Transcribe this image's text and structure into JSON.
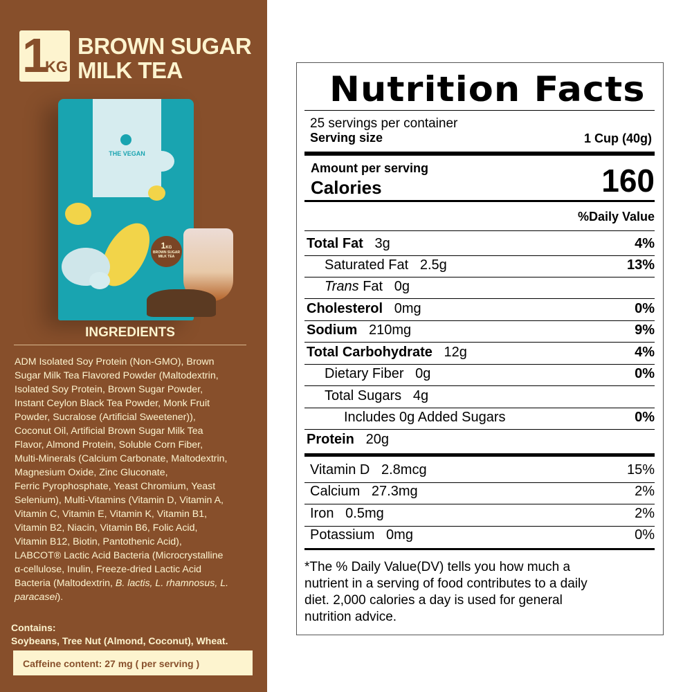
{
  "left": {
    "badge": {
      "number": "1",
      "unit": "KG"
    },
    "title_lines": [
      "BROWN SUGAR",
      "MILK TEA"
    ],
    "pouch": {
      "brand": "THE VEGAN",
      "sticker_number": "1",
      "sticker_unit": "KG",
      "sticker_text": "BROWN SUGAR MILK TEA"
    },
    "ingredients_heading": "INGREDIENTS",
    "ingredients_lines": [
      "ADM Isolated Soy Protein (Non-GMO), Brown",
      "Sugar Milk Tea Flavored Powder (Maltodextrin,",
      "Isolated Soy Protein, Brown Sugar Powder,",
      "Instant Ceylon Black Tea Powder, Monk Fruit",
      "Powder, Sucralose (Artificial Sweetener)),",
      "Coconut Oil, Artificial Brown Sugar Milk Tea",
      "Flavor, Almond Protein, Soluble Corn Fiber,",
      "Multi-Minerals (Calcium Carbonate, Maltodextrin,",
      "Magnesium Oxide, Zinc Gluconate,",
      "Ferric Pyrophosphate, Yeast Chromium, Yeast",
      "Selenium), Multi-Vitamins (Vitamin D, Vitamin A,",
      "Vitamin C, Vitamin E, Vitamin K, Vitamin B1,",
      "Vitamin B2, Niacin, Vitamin B6, Folic Acid,",
      "Vitamin B12, Biotin, Pantothenic Acid),",
      "LABCOT® Lactic Acid Bacteria (Microcrystalline",
      "α-cellulose, Inulin, Freeze-dried Lactic Acid"
    ],
    "ingredients_line17_plain": "Bacteria (Maltodextrin, ",
    "ingredients_line17_italic": "B. lactis, L. rhamnosus, L.",
    "ingredients_line18_italic": "paracasei",
    "ingredients_line18_plain": ").",
    "contains_heading": "Contains:",
    "contains": "Soybeans, Tree Nut (Almond, Coconut), Wheat.",
    "caffeine": "Caffeine content: 27 mg ( per serving )"
  },
  "label": {
    "title": "Nutrition Facts",
    "servings": "25 servings per container",
    "serving_size_label": "Serving size",
    "serving_size": "1 Cup (40g)",
    "amount_per_serving": "Amount per serving",
    "calories_label": "Calories",
    "calories": "160",
    "dv_header": "%Daily Value",
    "nutrients": [
      {
        "name": "Total Fat",
        "amount": "3g",
        "dv": "4%"
      },
      {
        "name": "Saturated Fat",
        "amount": "2.5g",
        "dv": "13%"
      },
      {
        "name": "Trans",
        "name2": " Fat",
        "amount": "0g",
        "dv": ""
      },
      {
        "name": "Cholesterol",
        "amount": "0mg",
        "dv": "0%"
      },
      {
        "name": "Sodium",
        "amount": "210mg",
        "dv": "9%"
      },
      {
        "name": "Total Carbohydrate",
        "amount": "12g",
        "dv": "4%"
      },
      {
        "name": "Dietary Fiber",
        "amount": "0g",
        "dv": "0%"
      },
      {
        "name": "Total Sugars",
        "amount": "4g",
        "dv": ""
      },
      {
        "name": "Includes 0g Added Sugars",
        "amount": "",
        "dv": "0%"
      },
      {
        "name": "Protein",
        "amount": "20g",
        "dv": ""
      }
    ],
    "vitamins": [
      {
        "name": "Vitamin D",
        "amount": "2.8mcg",
        "dv": "15%"
      },
      {
        "name": "Calcium",
        "amount": "27.3mg",
        "dv": "2%"
      },
      {
        "name": "Iron",
        "amount": "0.5mg",
        "dv": "2%"
      },
      {
        "name": "Potassium",
        "amount": "0mg",
        "dv": "0%"
      }
    ],
    "footnote_lines": [
      "*The % Daily Value(DV) tells you how much a",
      "nutrient in a serving of food contributes to a daily",
      "diet. 2,000 calories a day is used for general",
      "nutrition advice."
    ]
  }
}
